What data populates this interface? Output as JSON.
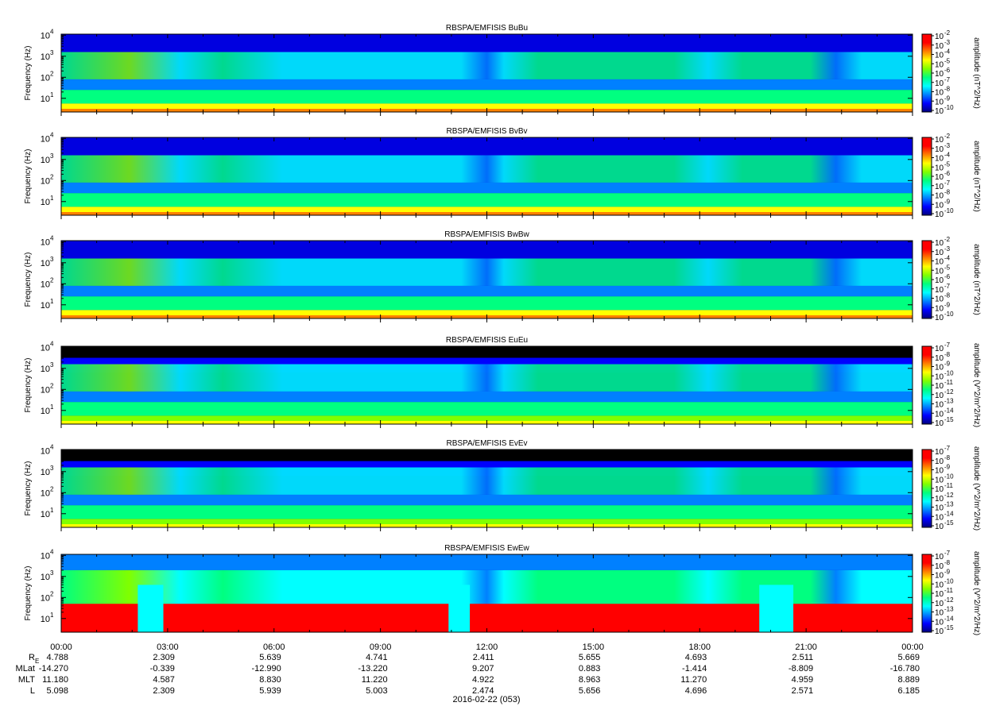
{
  "figure": {
    "date_label": "2016-02-22 (053)"
  },
  "colors": {
    "colormap": [
      "#00007f",
      "#0000ff",
      "#0080ff",
      "#00ffff",
      "#00ff80",
      "#80ff00",
      "#ffff00",
      "#ff8000",
      "#ff0000",
      "#ff0000"
    ],
    "background": "#ffffff",
    "axis": "#000000"
  },
  "time_axis": {
    "ticks": [
      "00:00",
      "03:00",
      "06:00",
      "09:00",
      "12:00",
      "15:00",
      "18:00",
      "21:00",
      "00:00"
    ]
  },
  "ephemeris": {
    "rows": [
      {
        "label": "R",
        "label_sub": "E",
        "values": [
          "4.788",
          "2.309",
          "5.639",
          "4.741",
          "2.411",
          "5.655",
          "4.693",
          "2.511",
          "5.669"
        ]
      },
      {
        "label": "MLat",
        "label_sub": "",
        "values": [
          "-14.270",
          "-0.339",
          "-12.990",
          "-13.220",
          "9.207",
          "0.883",
          "-1.414",
          "-8.809",
          "-16.780"
        ]
      },
      {
        "label": "MLT",
        "label_sub": "",
        "values": [
          "11.180",
          "4.587",
          "8.830",
          "11.220",
          "4.922",
          "8.963",
          "11.270",
          "4.959",
          "8.889"
        ]
      },
      {
        "label": "L",
        "label_sub": "",
        "values": [
          "5.098",
          "2.309",
          "5.939",
          "5.003",
          "2.474",
          "5.656",
          "4.696",
          "2.571",
          "6.185"
        ]
      }
    ]
  },
  "chart_data": [
    {
      "type": "heatmap",
      "title": "RBSPA/EMFISIS  BuBu",
      "ylabel": "Frequency (Hz)",
      "yscale": "log",
      "yticks": [
        "10",
        "10",
        "10",
        "10"
      ],
      "ytick_exponents": [
        "1",
        "2",
        "3",
        "4"
      ],
      "colorbar_label": "amplitude (nT^2/Hz)",
      "colorbar_ticks": [
        "10",
        "10",
        "10",
        "10",
        "10",
        "10",
        "10",
        "10",
        "10"
      ],
      "colorbar_exponents": [
        "-2",
        "-3",
        "-4",
        "-5",
        "-6",
        "-7",
        "-8",
        "-9",
        "-10"
      ],
      "field": "B"
    },
    {
      "type": "heatmap",
      "title": "RBSPA/EMFISIS  BvBv",
      "ylabel": "Frequency (Hz)",
      "yscale": "log",
      "yticks": [
        "10",
        "10",
        "10",
        "10"
      ],
      "ytick_exponents": [
        "1",
        "2",
        "3",
        "4"
      ],
      "colorbar_label": "amplitude (nT^2/Hz)",
      "colorbar_ticks": [
        "10",
        "10",
        "10",
        "10",
        "10",
        "10",
        "10",
        "10",
        "10"
      ],
      "colorbar_exponents": [
        "-2",
        "-3",
        "-4",
        "-5",
        "-6",
        "-7",
        "-8",
        "-9",
        "-10"
      ],
      "field": "B"
    },
    {
      "type": "heatmap",
      "title": "RBSPA/EMFISIS  BwBw",
      "ylabel": "Frequency (Hz)",
      "yscale": "log",
      "yticks": [
        "10",
        "10",
        "10",
        "10"
      ],
      "ytick_exponents": [
        "1",
        "2",
        "3",
        "4"
      ],
      "colorbar_label": "amplitude (nT^2/Hz)",
      "colorbar_ticks": [
        "10",
        "10",
        "10",
        "10",
        "10",
        "10",
        "10",
        "10",
        "10"
      ],
      "colorbar_exponents": [
        "-2",
        "-3",
        "-4",
        "-5",
        "-6",
        "-7",
        "-8",
        "-9",
        "-10"
      ],
      "field": "B"
    },
    {
      "type": "heatmap",
      "title": "RBSPA/EMFISIS  EuEu",
      "ylabel": "Frequency (Hz)",
      "yscale": "log",
      "yticks": [
        "10",
        "10",
        "10",
        "10"
      ],
      "ytick_exponents": [
        "1",
        "2",
        "3",
        "4"
      ],
      "colorbar_label": "amplitude (V^2/m^2/Hz)",
      "colorbar_ticks": [
        "10",
        "10",
        "10",
        "10",
        "10",
        "10",
        "10",
        "10",
        "10"
      ],
      "colorbar_exponents": [
        "-7",
        "-8",
        "-9",
        "-10",
        "-11",
        "-12",
        "-13",
        "-14",
        "-15"
      ],
      "field": "E"
    },
    {
      "type": "heatmap",
      "title": "RBSPA/EMFISIS  EvEv",
      "ylabel": "Frequency (Hz)",
      "yscale": "log",
      "yticks": [
        "10",
        "10",
        "10",
        "10"
      ],
      "ytick_exponents": [
        "1",
        "2",
        "3",
        "4"
      ],
      "colorbar_label": "amplitude (V^2/m^2/Hz)",
      "colorbar_ticks": [
        "10",
        "10",
        "10",
        "10",
        "10",
        "10",
        "10",
        "10",
        "10"
      ],
      "colorbar_exponents": [
        "-7",
        "-8",
        "-9",
        "-10",
        "-11",
        "-12",
        "-13",
        "-14",
        "-15"
      ],
      "field": "E"
    },
    {
      "type": "heatmap",
      "title": "RBSPA/EMFISIS  EwEw",
      "ylabel": "Frequency (Hz)",
      "yscale": "log",
      "yticks": [
        "10",
        "10",
        "10",
        "10"
      ],
      "ytick_exponents": [
        "1",
        "2",
        "3",
        "4"
      ],
      "colorbar_label": "amplitude (V^2/m^2/Hz)",
      "colorbar_ticks": [
        "10",
        "10",
        "10",
        "10",
        "10",
        "10",
        "10",
        "10",
        "10"
      ],
      "colorbar_exponents": [
        "-7",
        "-8",
        "-9",
        "-10",
        "-11",
        "-12",
        "-13",
        "-14",
        "-15"
      ],
      "field": "Ew"
    }
  ]
}
